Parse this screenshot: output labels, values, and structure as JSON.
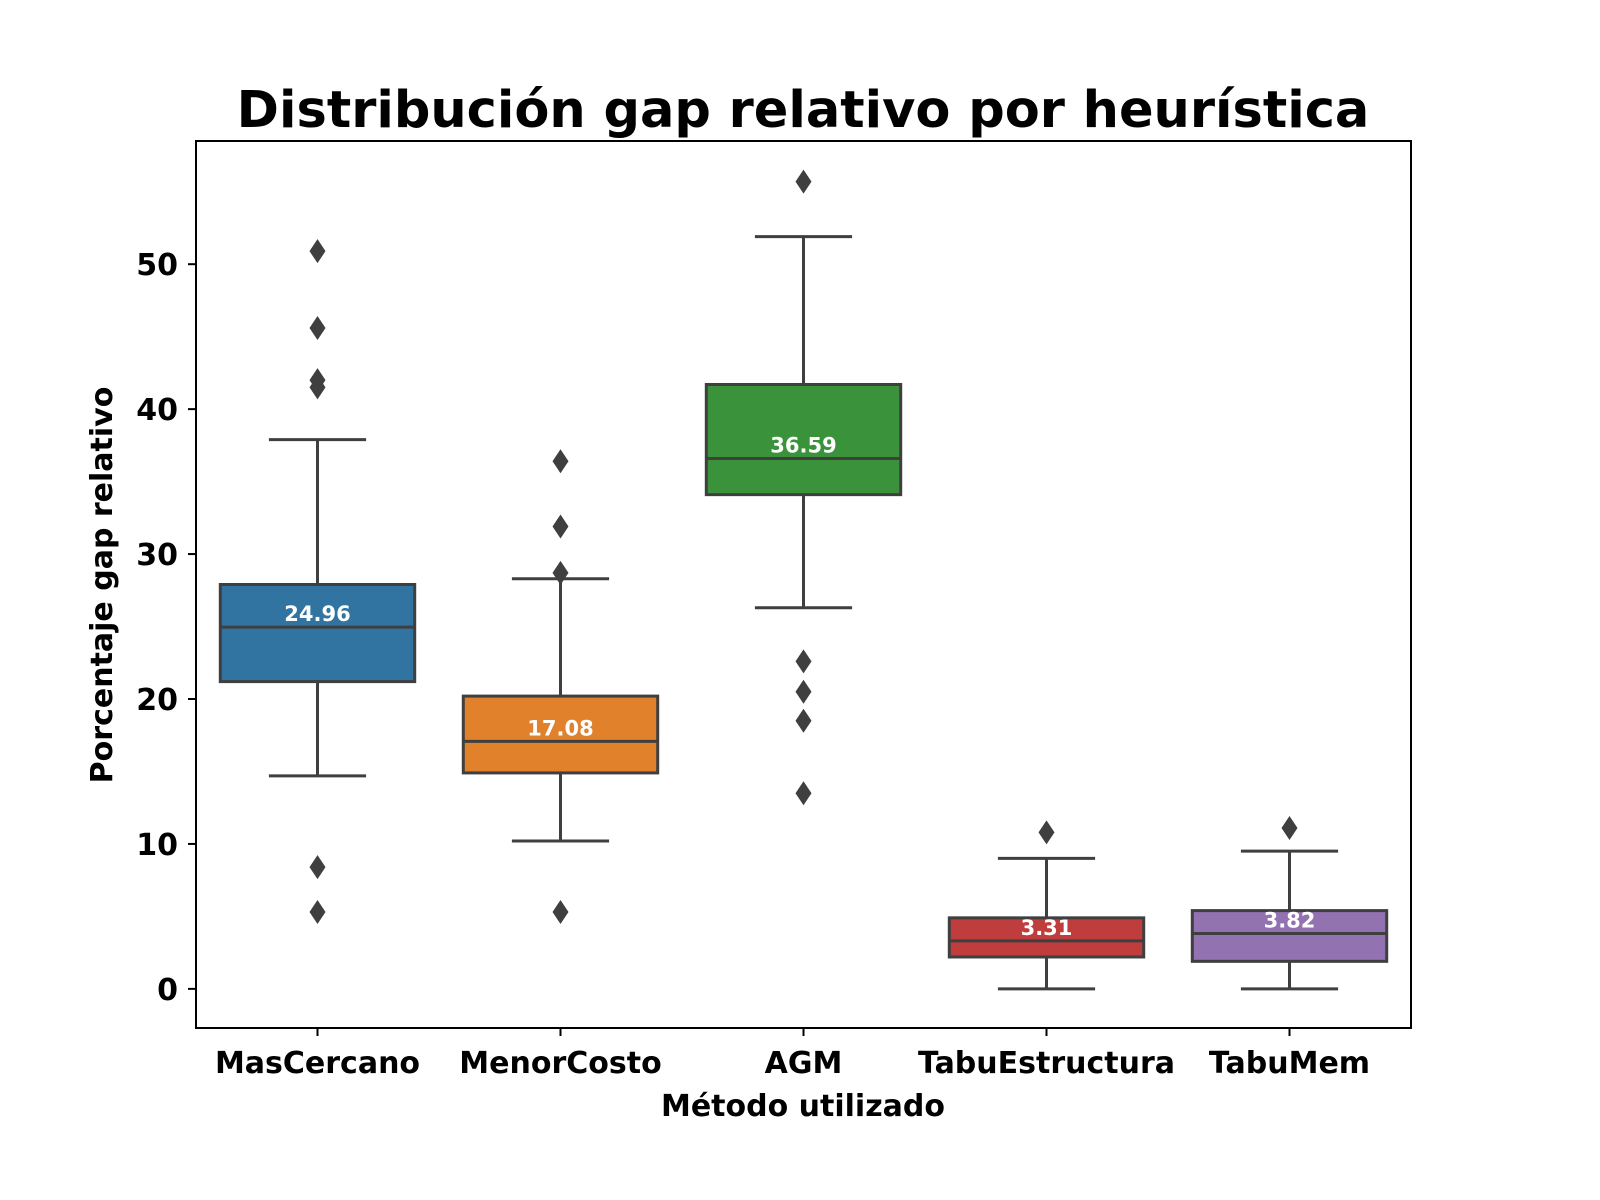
{
  "chart_data": {
    "type": "boxplot",
    "title": "Distribución gap relativo por heurística",
    "xlabel": "Método utilizado",
    "ylabel": "Porcentaje gap relativo",
    "ylim": [
      -2.7,
      58.5
    ],
    "yticks": [
      0,
      10,
      20,
      30,
      40,
      50
    ],
    "grid": false,
    "series": [
      {
        "name": "MasCercano",
        "color": "#3274a1",
        "whisker_low": 14.7,
        "q1": 21.2,
        "median": 24.96,
        "q3": 27.9,
        "whisker_high": 37.9,
        "outliers": [
          5.3,
          8.4,
          41.5,
          42.0,
          45.6,
          50.9
        ],
        "median_label": "24.96"
      },
      {
        "name": "MenorCosto",
        "color": "#e1812c",
        "whisker_low": 10.2,
        "q1": 14.9,
        "median": 17.08,
        "q3": 20.2,
        "whisker_high": 28.3,
        "outliers": [
          5.3,
          28.7,
          31.9,
          36.4
        ],
        "median_label": "17.08"
      },
      {
        "name": "AGM",
        "color": "#3a923a",
        "whisker_low": 26.3,
        "q1": 34.1,
        "median": 36.59,
        "q3": 41.7,
        "whisker_high": 51.9,
        "outliers": [
          13.5,
          18.5,
          20.5,
          22.6,
          55.7
        ],
        "median_label": "36.59"
      },
      {
        "name": "TabuEstructura",
        "color": "#c03d3e",
        "whisker_low": 0,
        "q1": 2.2,
        "median": 3.31,
        "q3": 4.9,
        "whisker_high": 9.0,
        "outliers": [
          10.8
        ],
        "median_label": "3.31"
      },
      {
        "name": "TabuMem",
        "color": "#9372b2",
        "whisker_low": 0,
        "q1": 1.9,
        "median": 3.82,
        "q3": 5.4,
        "whisker_high": 9.5,
        "outliers": [
          11.1
        ],
        "median_label": "3.82"
      }
    ]
  }
}
